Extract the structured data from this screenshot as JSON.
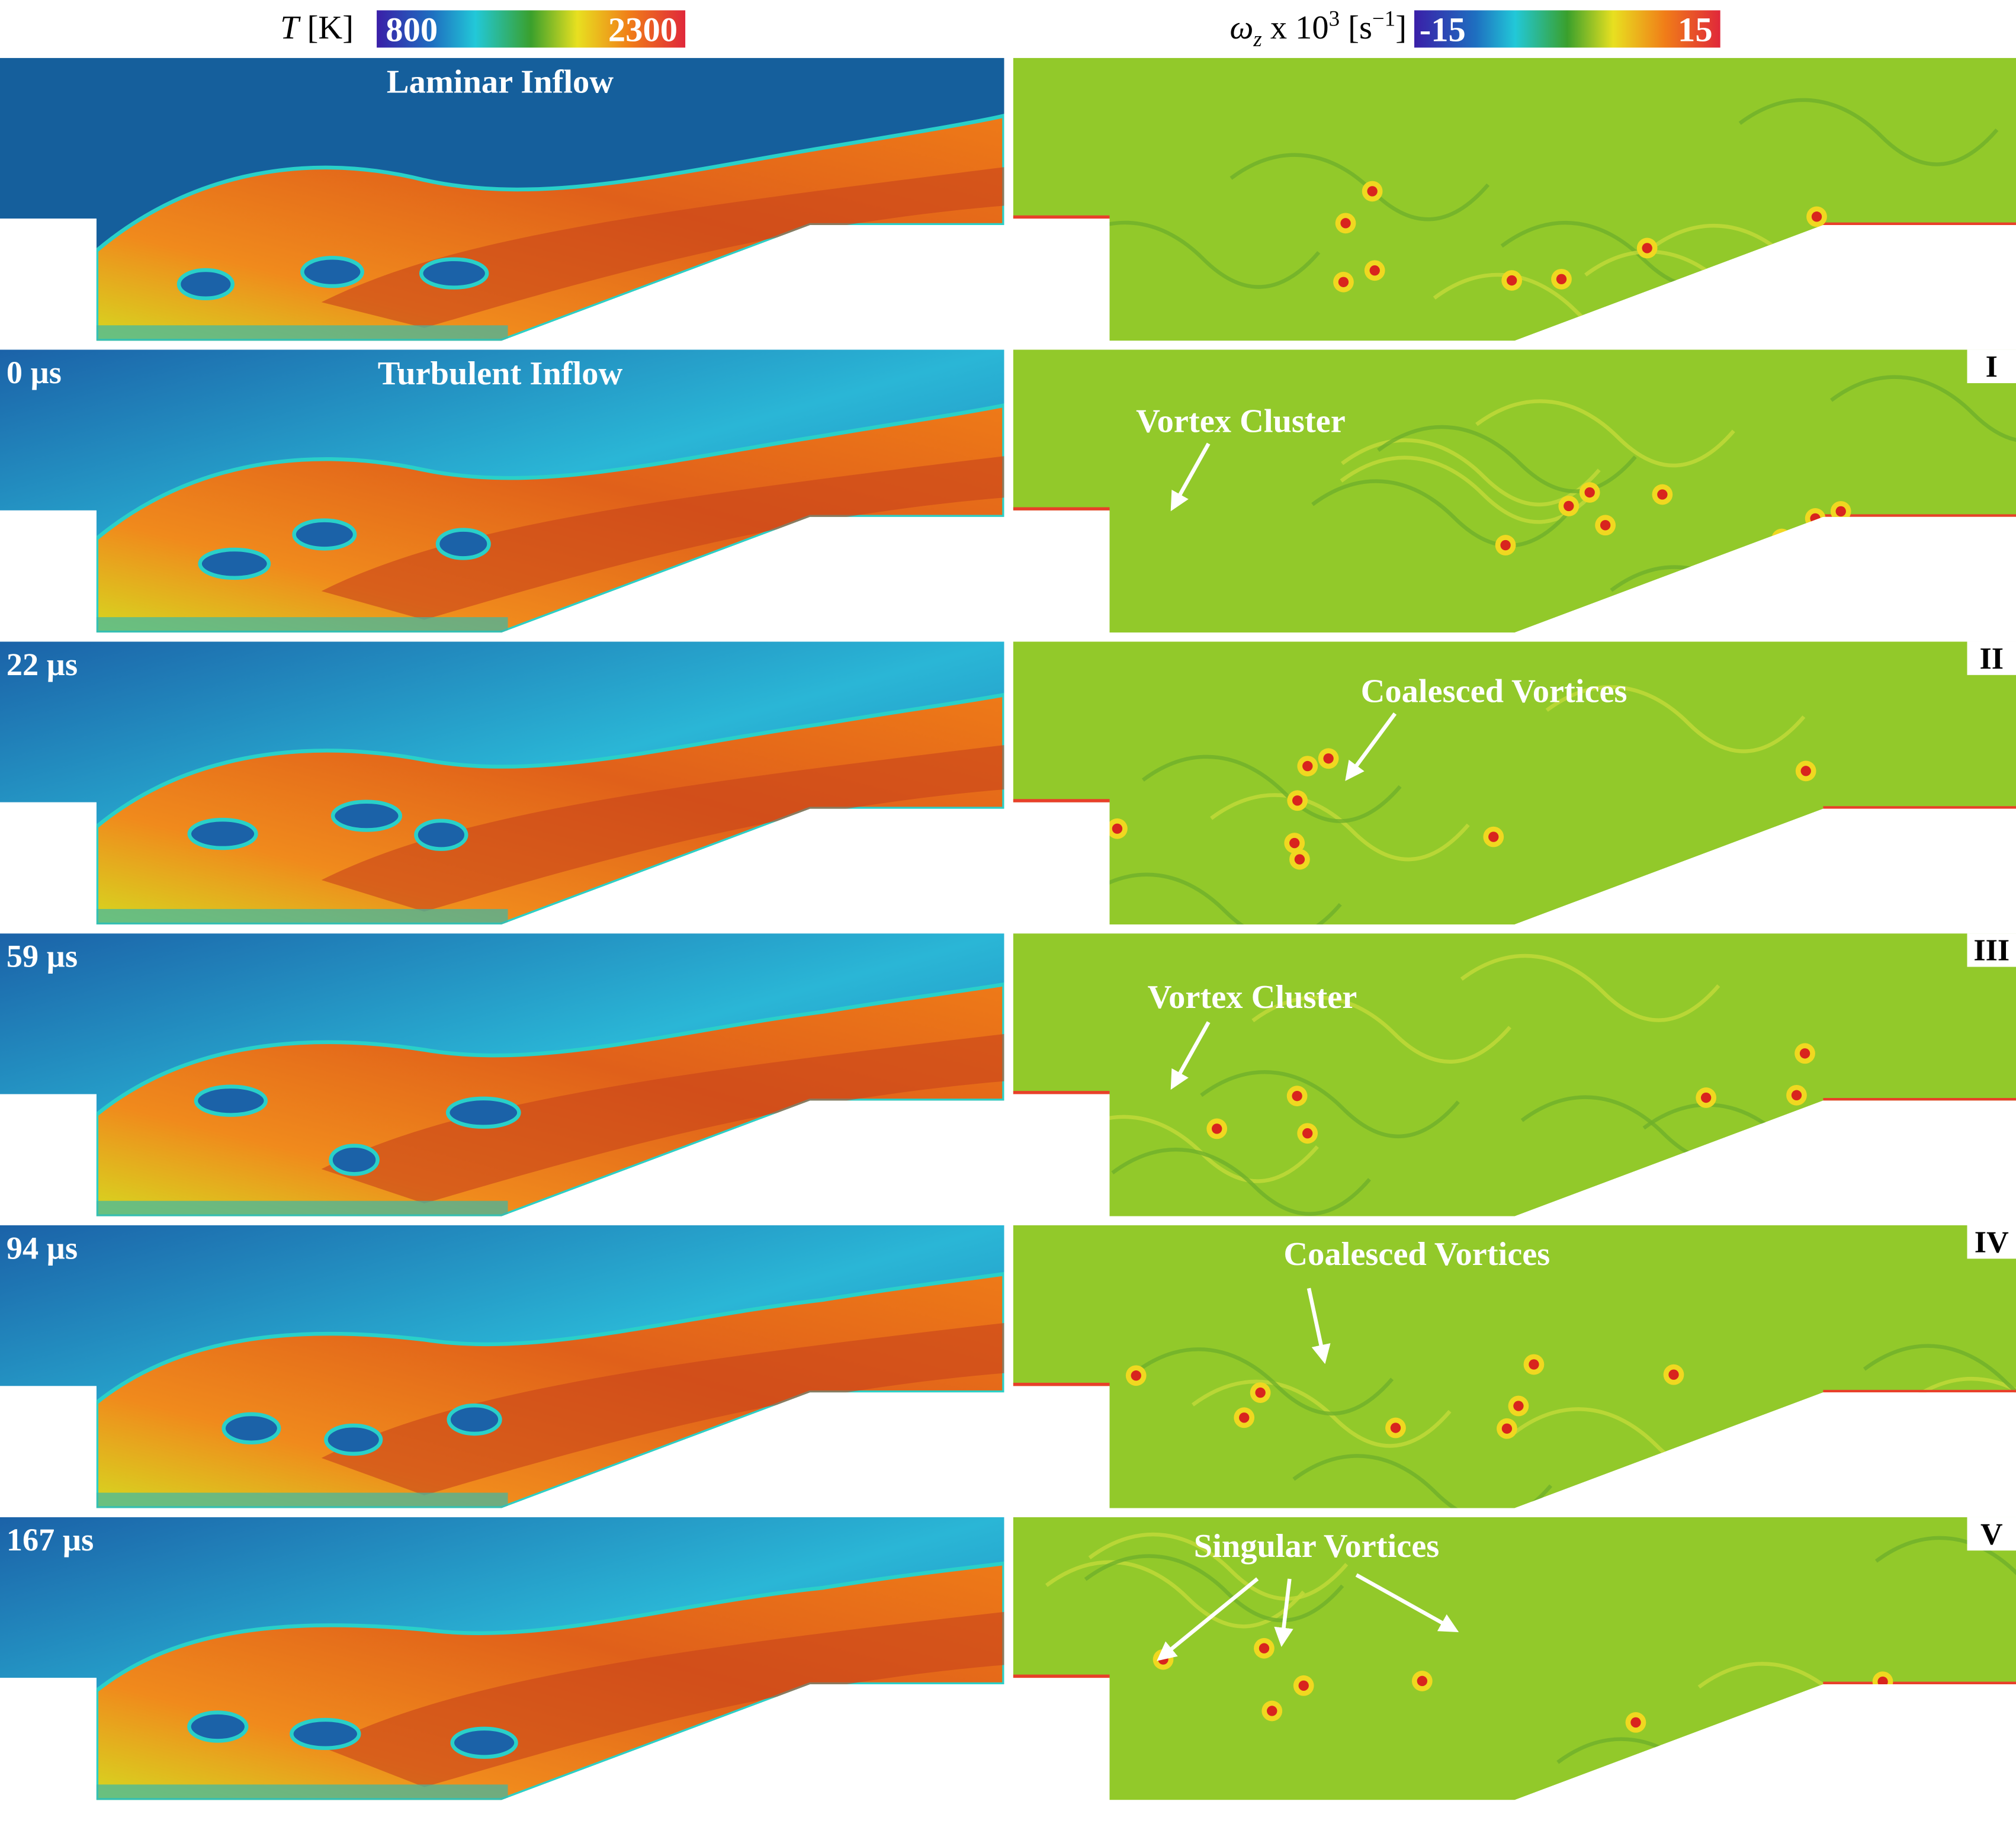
{
  "colorbars": [
    {
      "label_parts": [
        "T",
        " [K]"
      ],
      "min": 800,
      "max": 2300
    },
    {
      "label_parts": [
        "ω",
        "z",
        " x 10",
        "3",
        " [s",
        "−1",
        "]"
      ],
      "min": -15,
      "max": 15
    }
  ],
  "rows": [
    {
      "left": {
        "title": "Laminar Inflow"
      }
    },
    {
      "left": {
        "time": "0 µs",
        "title": "Turbulent Inflow"
      },
      "right": {
        "numeral": "I",
        "annotation": "Vortex Cluster"
      }
    },
    {
      "left": {
        "time": "22 µs"
      },
      "right": {
        "numeral": "II",
        "annotation": "Coalesced Vortices"
      }
    },
    {
      "left": {
        "time": "59 µs"
      },
      "right": {
        "numeral": "III",
        "annotation": "Vortex Cluster"
      }
    },
    {
      "left": {
        "time": "94 µs"
      },
      "right": {
        "numeral": "IV",
        "annotation": "Coalesced Vortices"
      }
    },
    {
      "left": {
        "time": "167 µs"
      },
      "right": {
        "numeral": "V",
        "annotation": "Singular Vortices"
      }
    }
  ]
}
